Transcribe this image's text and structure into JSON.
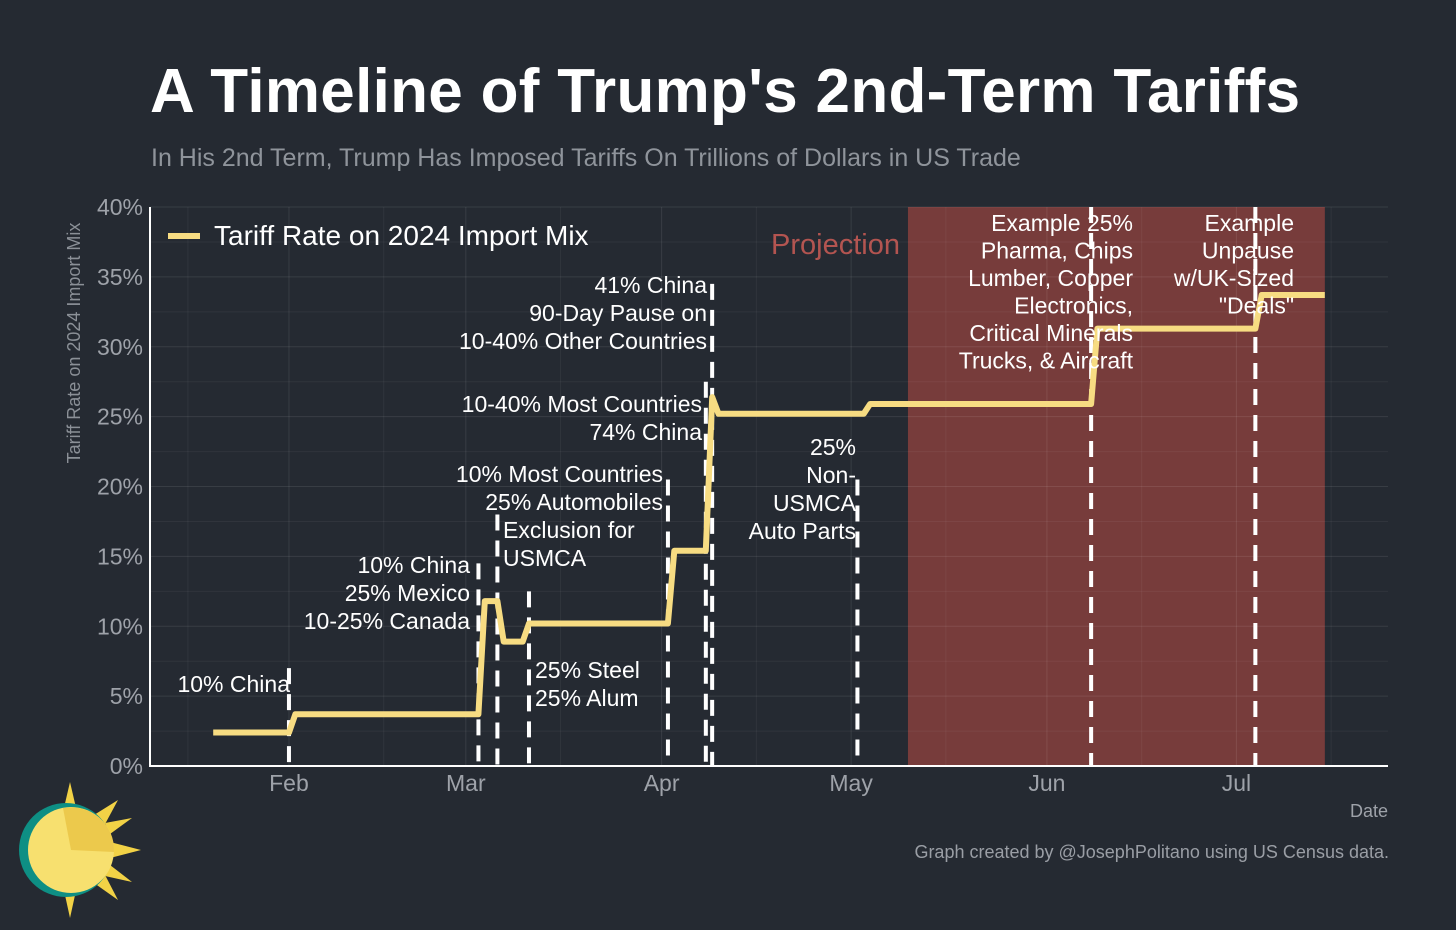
{
  "title": "A Timeline of Trump's 2nd-Term Tariffs",
  "subtitle": "In His 2nd Term, Trump Has Imposed Tariffs On Trillions of Dollars in US Trade",
  "credit": "Graph created by @JosephPolitano using US Census data.",
  "colors": {
    "background": "#252a32",
    "line": "#f7dc82",
    "projection": "#773c3b",
    "projection_label": "#b35450",
    "event_marker": "#ffffff"
  },
  "chart_data": {
    "type": "line",
    "title": "A Timeline of Trump's 2nd-Term Tariffs",
    "xlabel": "Date",
    "ylabel": "Tariff Rate on 2024 Import Mix",
    "xlim": [
      "2025-01-10",
      "2025-07-25"
    ],
    "ylim": [
      0,
      0.4
    ],
    "grid": true,
    "legend_position": "top-left",
    "x_ticks": [
      {
        "label": "Feb",
        "date": "2025-02-01"
      },
      {
        "label": "Mar",
        "date": "2025-03-01"
      },
      {
        "label": "Apr",
        "date": "2025-04-01"
      },
      {
        "label": "May",
        "date": "2025-05-01"
      },
      {
        "label": "Jun",
        "date": "2025-06-01"
      },
      {
        "label": "Jul",
        "date": "2025-07-01"
      }
    ],
    "y_ticks": [
      {
        "label": "0%",
        "value": 0
      },
      {
        "label": "5%",
        "value": 0.05
      },
      {
        "label": "10%",
        "value": 0.1
      },
      {
        "label": "15%",
        "value": 0.15
      },
      {
        "label": "20%",
        "value": 0.2
      },
      {
        "label": "25%",
        "value": 0.25
      },
      {
        "label": "30%",
        "value": 0.3
      },
      {
        "label": "35%",
        "value": 0.35
      },
      {
        "label": "40%",
        "value": 0.4
      }
    ],
    "projection": {
      "label": "Projection",
      "start": "2025-05-10",
      "end": "2025-07-15"
    },
    "series": [
      {
        "name": "Tariff Rate on 2024 Import Mix",
        "x": [
          "2025-01-20",
          "2025-02-01",
          "2025-02-02",
          "2025-03-03",
          "2025-03-04",
          "2025-03-05",
          "2025-03-06",
          "2025-03-07",
          "2025-03-08",
          "2025-03-10",
          "2025-03-11",
          "2025-03-12",
          "2025-04-02",
          "2025-04-03",
          "2025-04-08",
          "2025-04-09",
          "2025-04-10",
          "2025-04-11",
          "2025-05-03",
          "2025-05-04",
          "2025-06-08",
          "2025-06-09",
          "2025-07-04",
          "2025-07-05",
          "2025-07-15"
        ],
        "values": [
          0.024,
          0.024,
          0.037,
          0.037,
          0.118,
          0.118,
          0.118,
          0.089,
          0.089,
          0.089,
          0.102,
          0.102,
          0.102,
          0.154,
          0.154,
          0.264,
          0.252,
          0.252,
          0.252,
          0.259,
          0.259,
          0.313,
          0.313,
          0.337,
          0.337
        ]
      }
    ],
    "event_markers": [
      {
        "date": "2025-02-01",
        "y_top": 0.07
      },
      {
        "date": "2025-03-03",
        "y_top": 0.145
      },
      {
        "date": "2025-03-06",
        "y_top": 0.18
      },
      {
        "date": "2025-03-11",
        "y_top": 0.125
      },
      {
        "date": "2025-04-02",
        "y_top": 0.205
      },
      {
        "date": "2025-04-08",
        "y_top": 0.275
      },
      {
        "date": "2025-04-09",
        "y_top": 0.345
      },
      {
        "date": "2025-05-02",
        "y_top": 0.205
      },
      {
        "date": "2025-06-08",
        "y_top": 0.4
      },
      {
        "date": "2025-07-04",
        "y_top": 0.4
      }
    ],
    "annotations": [
      {
        "lines": [
          "10% China"
        ],
        "align": "end"
      },
      {
        "lines": [
          "10% China",
          "25% Mexico",
          "10-25% Canada"
        ],
        "align": "end"
      },
      {
        "lines": [
          "10% Most Countries",
          "25% Automobiles"
        ],
        "align": "end"
      },
      {
        "lines": [
          "Exclusion for",
          "USMCA"
        ],
        "align": "start"
      },
      {
        "lines": [
          "25% Steel",
          "25% Alum"
        ],
        "align": "start"
      },
      {
        "lines": [
          "41% China",
          "90-Day Pause on",
          "10-40% Other Countries"
        ],
        "align": "end"
      },
      {
        "lines": [
          "10-40% Most Countries",
          "74% China"
        ],
        "align": "end"
      },
      {
        "lines": [
          "25%",
          "Non-",
          "USMCA",
          "Auto Parts"
        ],
        "align": "end"
      },
      {
        "lines": [
          "Example 25%",
          "Pharma, Chips",
          "Lumber, Copper",
          "Electronics,",
          "Critical Minerals",
          "Trucks, & Aircraft"
        ],
        "align": "end"
      },
      {
        "lines": [
          "Example",
          "Unpause",
          "w/UK-Sized",
          "\"Deals\""
        ],
        "align": "end"
      }
    ]
  }
}
